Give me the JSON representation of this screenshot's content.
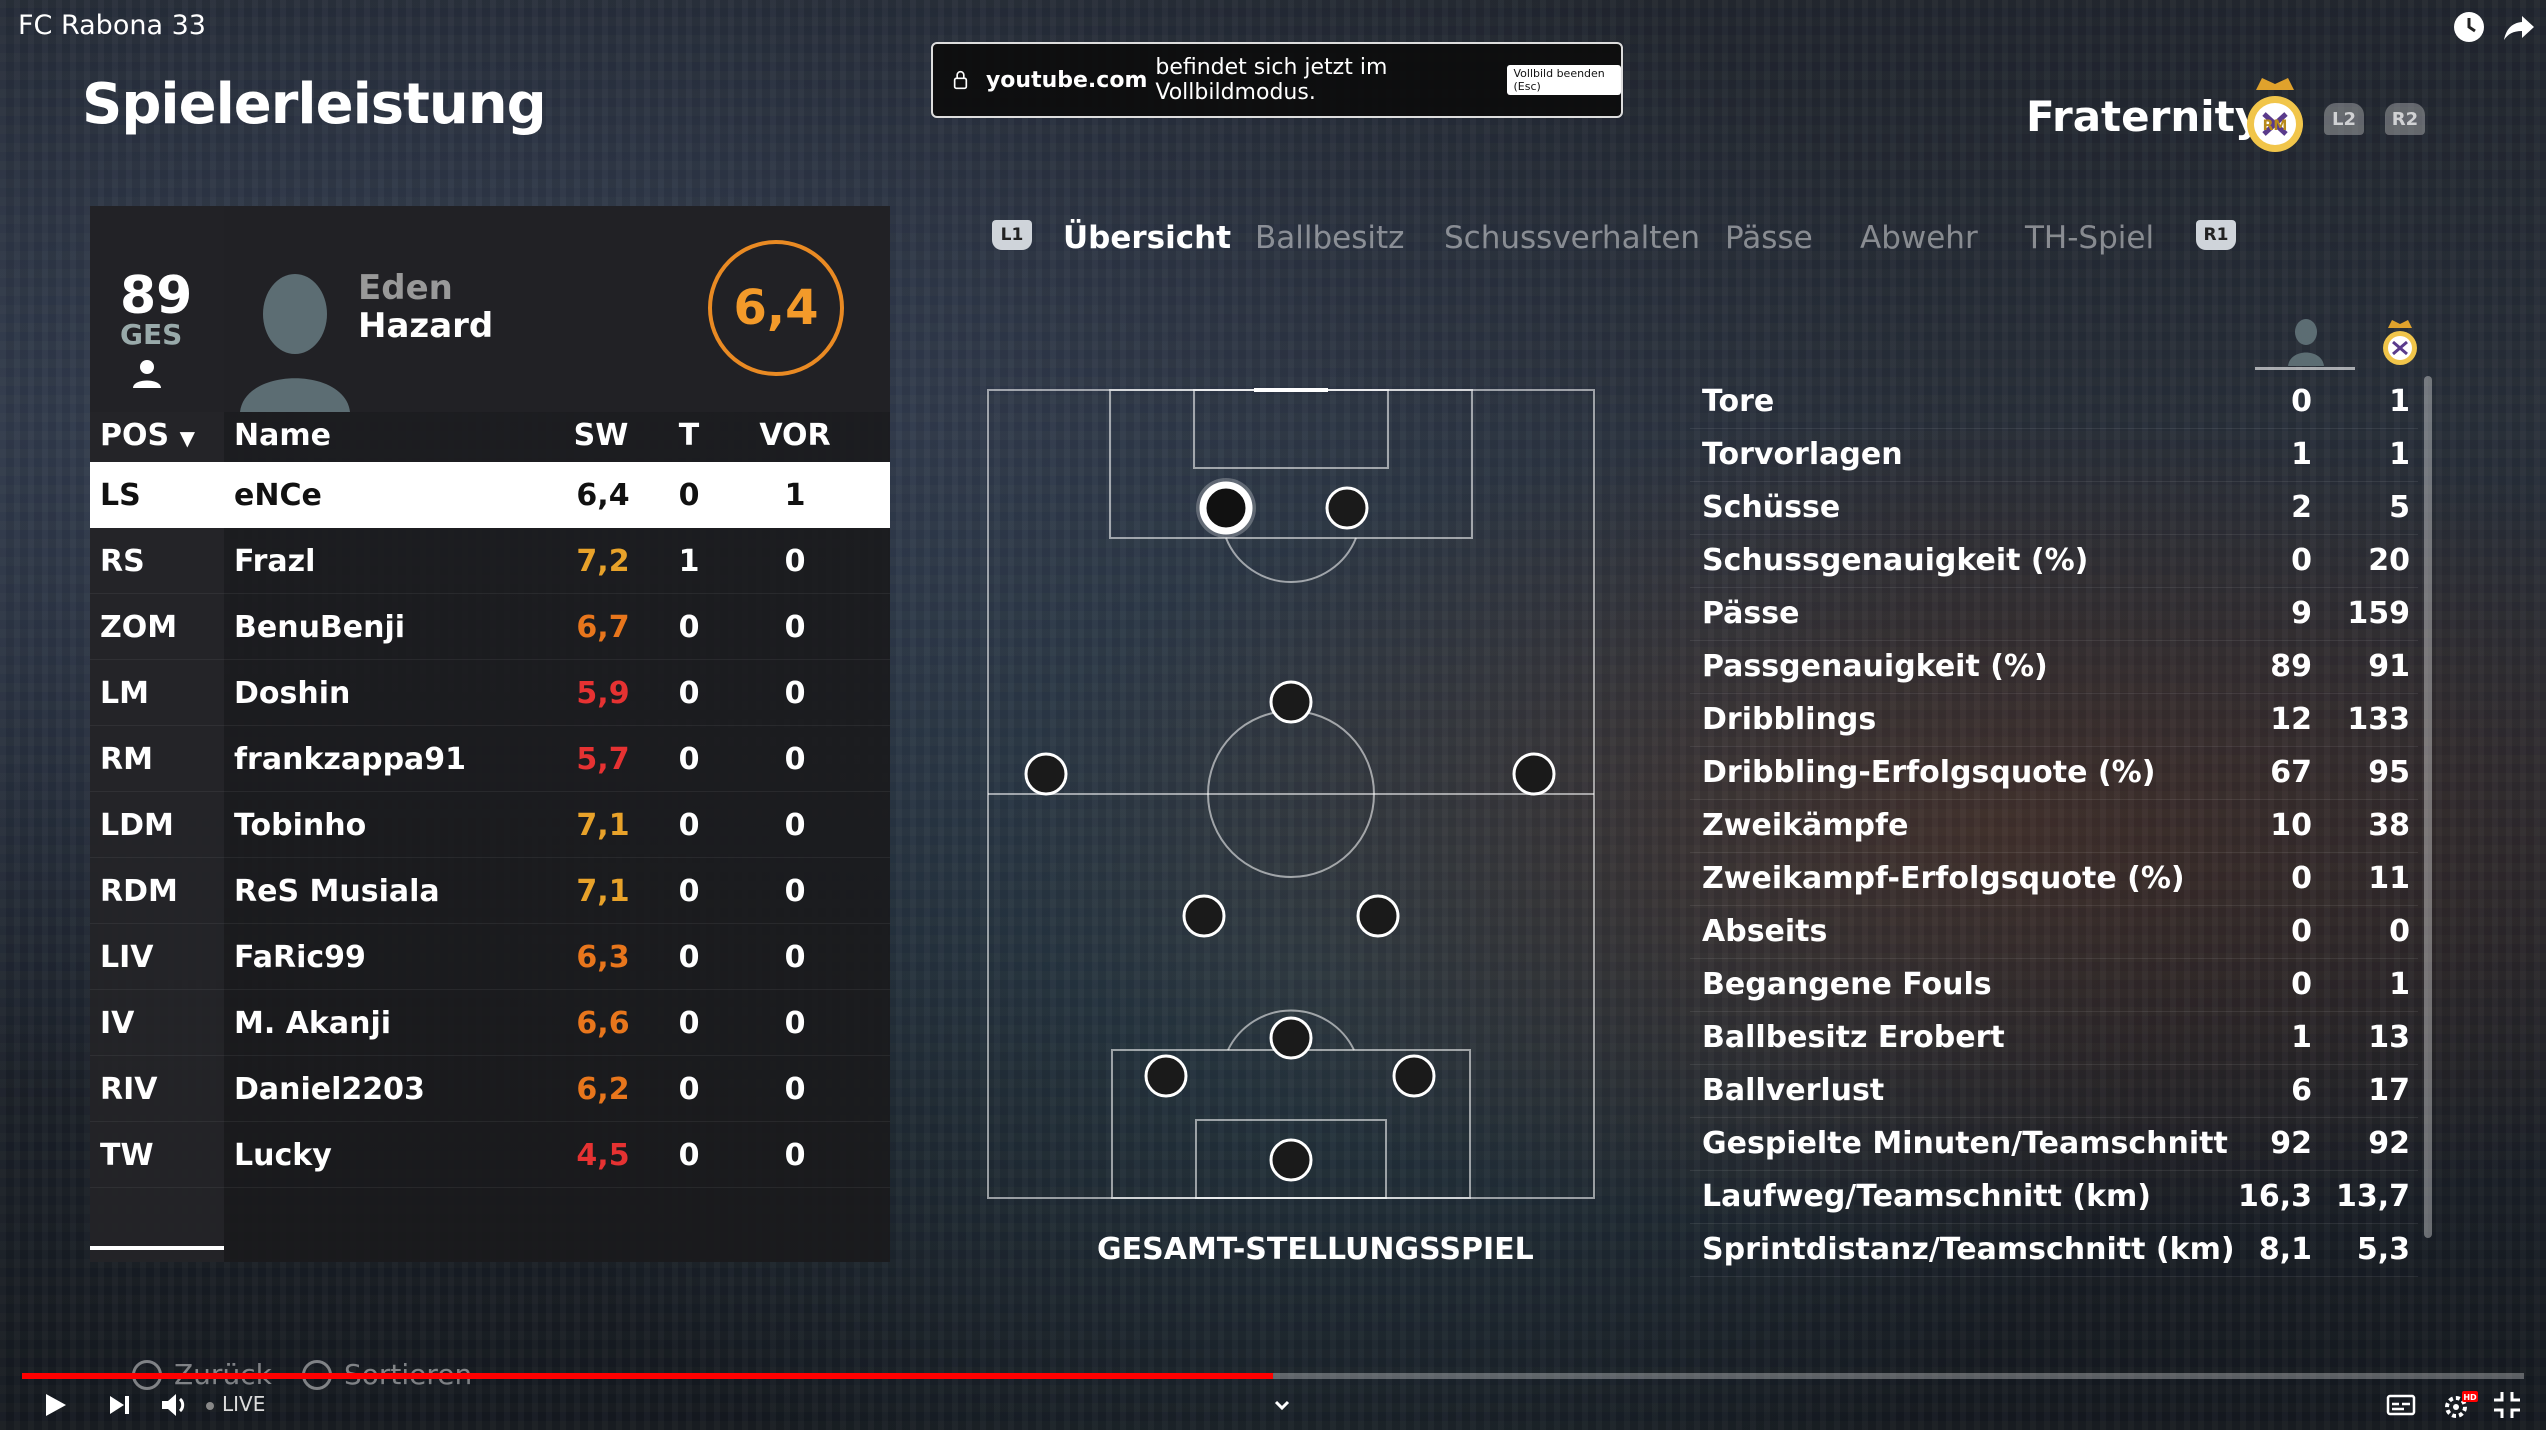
{
  "window": {
    "title": "FC Rabona 33"
  },
  "fullscreen_notice": {
    "domain": "youtube.com",
    "message": "befindet sich jetzt im Vollbildmodus.",
    "key_label": "Vollbild beenden (Esc)"
  },
  "page": {
    "title": "Spielerleistung"
  },
  "player_card": {
    "overall": "89",
    "overall_label": "GES",
    "first_name": "Eden",
    "last_name": "Hazard",
    "rating": "6,4"
  },
  "table": {
    "headers": {
      "pos": "POS",
      "name": "Name",
      "sw": "SW",
      "t": "T",
      "vor": "VOR"
    },
    "rows": [
      {
        "pos": "LS",
        "name": "eNCe",
        "sw": "6,4",
        "t": "0",
        "vor": "1",
        "color": "#111111"
      },
      {
        "pos": "RS",
        "name": "Frazl",
        "sw": "7,2",
        "t": "1",
        "vor": "0",
        "color": "#e8a22a"
      },
      {
        "pos": "ZOM",
        "name": "BenuBenji",
        "sw": "6,7",
        "t": "0",
        "vor": "0",
        "color": "#e8761c"
      },
      {
        "pos": "LM",
        "name": "Doshin",
        "sw": "5,9",
        "t": "0",
        "vor": "0",
        "color": "#e63232"
      },
      {
        "pos": "RM",
        "name": "frankzappa91",
        "sw": "5,7",
        "t": "0",
        "vor": "0",
        "color": "#e63232"
      },
      {
        "pos": "LDM",
        "name": "Tobinho",
        "sw": "7,1",
        "t": "0",
        "vor": "0",
        "color": "#e8a22a"
      },
      {
        "pos": "RDM",
        "name": "ReS Musiala",
        "sw": "7,1",
        "t": "0",
        "vor": "0",
        "color": "#e8a22a"
      },
      {
        "pos": "LIV",
        "name": "FaRic99",
        "sw": "6,3",
        "t": "0",
        "vor": "0",
        "color": "#e8761c"
      },
      {
        "pos": "IV",
        "name": "M. Akanji",
        "sw": "6,6",
        "t": "0",
        "vor": "0",
        "color": "#e8761c"
      },
      {
        "pos": "RIV",
        "name": "Daniel2203",
        "sw": "6,2",
        "t": "0",
        "vor": "0",
        "color": "#e8761c"
      },
      {
        "pos": "TW",
        "name": "Lucky",
        "sw": "4,5",
        "t": "0",
        "vor": "0",
        "color": "#e63232"
      }
    ]
  },
  "tabs": {
    "l1": "L1",
    "r1": "R1",
    "items": [
      "Übersicht",
      "Ballbesitz",
      "Schussverhalten",
      "Pässe",
      "Abwehr",
      "TH-Spiel"
    ]
  },
  "team": {
    "name": "Fraternity",
    "l2": "L2",
    "r2": "R2"
  },
  "pitch": {
    "label": "GESAMT-STELLUNGSSPIEL"
  },
  "stats": [
    {
      "label": "Tore",
      "player": "0",
      "team": "1"
    },
    {
      "label": "Torvorlagen",
      "player": "1",
      "team": "1"
    },
    {
      "label": "Schüsse",
      "player": "2",
      "team": "5"
    },
    {
      "label": "Schussgenauigkeit (%)",
      "player": "0",
      "team": "20"
    },
    {
      "label": "Pässe",
      "player": "9",
      "team": "159"
    },
    {
      "label": "Passgenauigkeit (%)",
      "player": "89",
      "team": "91"
    },
    {
      "label": "Dribblings",
      "player": "12",
      "team": "133"
    },
    {
      "label": "Dribbling-Erfolgsquote (%)",
      "player": "67",
      "team": "95"
    },
    {
      "label": "Zweikämpfe",
      "player": "10",
      "team": "38"
    },
    {
      "label": "Zweikampf-Erfolgsquote (%)",
      "player": "0",
      "team": "11"
    },
    {
      "label": "Abseits",
      "player": "0",
      "team": "0"
    },
    {
      "label": "Begangene Fouls",
      "player": "0",
      "team": "1"
    },
    {
      "label": "Ballbesitz Erobert",
      "player": "1",
      "team": "13"
    },
    {
      "label": "Ballverlust",
      "player": "6",
      "team": "17"
    },
    {
      "label": "Gespielte Minuten/Teamschnitt",
      "player": "92",
      "team": "92"
    },
    {
      "label": "Laufweg/Teamschnitt (km)",
      "player": "16,3",
      "team": "13,7"
    },
    {
      "label": "Sprintdistanz/Teamschnitt (km)",
      "player": "8,1",
      "team": "5,3"
    }
  ],
  "prompts": {
    "back": "Zurück",
    "sort": "Sortieren"
  },
  "player_bar": {
    "live": "LIVE",
    "progress": 0.5
  },
  "colors": {
    "accent_orange": "#e98a23",
    "progress_red": "#ff0000"
  }
}
